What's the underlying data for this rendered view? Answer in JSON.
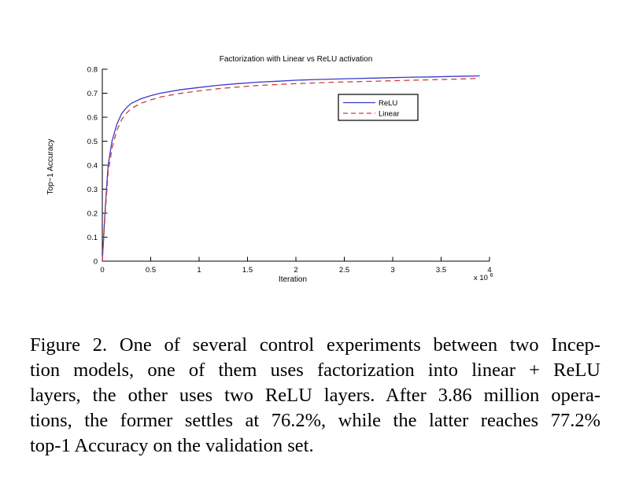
{
  "chart_data": {
    "type": "line",
    "title": "Factorization with Linear vs ReLU activation",
    "xlabel": "Iteration",
    "ylabel": "Top-1 Accuracy",
    "ylabel_display": "Top−1 Accuracy",
    "x_scale": {
      "prefix": "x 10",
      "exponent": "6"
    },
    "xlim": [
      0,
      4
    ],
    "ylim": [
      0,
      0.8
    ],
    "grid": false,
    "xticks": [
      0,
      0.5,
      1,
      1.5,
      2,
      2.5,
      3,
      3.5,
      4
    ],
    "xtick_labels": [
      "0",
      "0.5",
      "1",
      "1.5",
      "2",
      "2.5",
      "3",
      "3.5",
      "4"
    ],
    "yticks": [
      0,
      0.1,
      0.2,
      0.3,
      0.4,
      0.5,
      0.6,
      0.7,
      0.8
    ],
    "ytick_labels": [
      "0",
      "0.1",
      "0.2",
      "0.3",
      "0.4",
      "0.5",
      "0.6",
      "0.7",
      "0.8"
    ],
    "legend": {
      "position": "upper-right-inside",
      "entries": [
        {
          "label": "ReLU",
          "style": "solid",
          "color": "#3a3ac8"
        },
        {
          "label": "Linear",
          "style": "dashed",
          "color": "#cc3f3f"
        }
      ]
    },
    "x": [
      0,
      0.03,
      0.06,
      0.1,
      0.15,
      0.2,
      0.25,
      0.3,
      0.4,
      0.5,
      0.6,
      0.8,
      1.0,
      1.2,
      1.4,
      1.6,
      1.8,
      2.0,
      2.2,
      2.4,
      2.6,
      2.8,
      3.0,
      3.2,
      3.4,
      3.6,
      3.75,
      3.9
    ],
    "series": [
      {
        "name": "ReLU",
        "color": "#3a3ac8",
        "style": "solid",
        "final_accuracy": 0.772,
        "values": [
          0,
          0.22,
          0.4,
          0.5,
          0.57,
          0.615,
          0.64,
          0.658,
          0.677,
          0.69,
          0.7,
          0.714,
          0.724,
          0.733,
          0.74,
          0.746,
          0.75,
          0.754,
          0.757,
          0.759,
          0.761,
          0.763,
          0.765,
          0.767,
          0.768,
          0.77,
          0.771,
          0.772
        ]
      },
      {
        "name": "Linear",
        "color": "#cc3f3f",
        "style": "dashed",
        "final_accuracy": 0.762,
        "values": [
          0,
          0.2,
          0.37,
          0.47,
          0.545,
          0.59,
          0.617,
          0.637,
          0.658,
          0.672,
          0.684,
          0.699,
          0.71,
          0.719,
          0.726,
          0.732,
          0.736,
          0.74,
          0.743,
          0.746,
          0.748,
          0.75,
          0.752,
          0.754,
          0.756,
          0.758,
          0.76,
          0.762
        ]
      }
    ],
    "colors": {
      "axis": "#000000",
      "background": "#ffffff",
      "text": "#000000"
    }
  },
  "caption": {
    "label": "Figure 2.",
    "lines": [
      "Figure 2. One of several control experiments between two Incep-",
      "tion models, one of them uses factorization into linear + ReLU",
      "layers, the other uses two ReLU layers. After 3.86 million opera-",
      "tions, the former settles at 76.2%, while the latter reaches 77.2%",
      "top-1 Accuracy on the validation set."
    ],
    "full_text": "Figure 2. One of several control experiments between two Inception models, one of them uses factorization into linear + ReLU layers, the other uses two ReLU layers. After 3.86 million operations, the former settles at 76.2%, while the latter reaches 77.2% top-1 Accuracy on the validation set."
  }
}
